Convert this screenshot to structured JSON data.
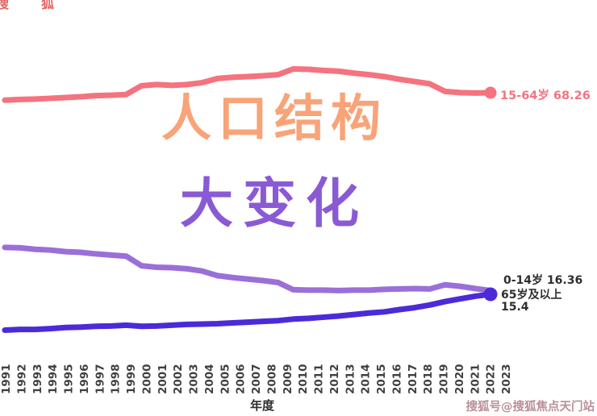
{
  "overlay_title": {
    "line1": "人口结构",
    "line2": "大变化"
  },
  "colors": {
    "title_line1": "#f8a478",
    "title_line2": "#8a5ad4",
    "working_line": "#f4737f",
    "children_line": "#9b6fd8",
    "elderly_line": "#4b2bd9",
    "axis_text": "#3f3f3f"
  },
  "axis": {
    "x_title": "年度"
  },
  "end_labels": {
    "working": "15-64岁 68.26",
    "children": "0-14岁 16.36",
    "elderly_name": "65岁及以上",
    "elderly_value": "15.4"
  },
  "watermark": {
    "text": "搜狐号@搜狐焦点天门站",
    "fragment": "搜狐"
  },
  "chart_data": {
    "type": "line",
    "title": "人口结构 大变化",
    "xlabel": "年度",
    "x": [
      1991,
      1992,
      1993,
      1994,
      1995,
      1996,
      1997,
      1998,
      1999,
      2000,
      2001,
      2002,
      2003,
      2004,
      2005,
      2006,
      2007,
      2008,
      2009,
      2010,
      2011,
      2012,
      2013,
      2014,
      2015,
      2016,
      2017,
      2018,
      2019,
      2020,
      2021,
      2022,
      2023
    ],
    "x_tick_rotation": 90,
    "grid": false,
    "ylim": [
      0,
      80
    ],
    "legend_position": "end-of-line-labels",
    "series": [
      {
        "name": "15-64岁",
        "color": "#f4737f",
        "end_value": 68.26,
        "values": [
          66.3,
          66.5,
          66.6,
          66.8,
          67.0,
          67.2,
          67.5,
          67.6,
          67.8,
          70.1,
          70.4,
          70.2,
          70.4,
          70.9,
          72.0,
          72.3,
          72.5,
          72.7,
          73.0,
          74.5,
          74.4,
          74.1,
          73.9,
          73.4,
          73.0,
          72.5,
          71.8,
          71.2,
          70.6,
          68.6,
          68.3,
          68.2,
          68.26
        ]
      },
      {
        "name": "0-14岁",
        "color": "#9b6fd8",
        "end_value": 16.36,
        "values": [
          27.7,
          27.6,
          27.2,
          27.0,
          26.6,
          26.4,
          26.0,
          25.7,
          25.4,
          22.9,
          22.5,
          22.4,
          22.1,
          21.5,
          20.3,
          19.8,
          19.4,
          19.0,
          18.5,
          16.6,
          16.5,
          16.5,
          16.4,
          16.5,
          16.5,
          16.7,
          16.8,
          16.9,
          16.8,
          17.9,
          17.5,
          16.9,
          16.36
        ]
      },
      {
        "name": "65岁及以上",
        "color": "#4b2bd9",
        "end_value": 15.4,
        "values": [
          6.0,
          6.2,
          6.2,
          6.4,
          6.7,
          6.8,
          7.0,
          7.1,
          7.3,
          7.0,
          7.1,
          7.3,
          7.5,
          7.6,
          7.7,
          7.9,
          8.1,
          8.3,
          8.5,
          8.9,
          9.1,
          9.4,
          9.7,
          10.1,
          10.5,
          10.8,
          11.4,
          11.9,
          12.6,
          13.5,
          14.2,
          14.9,
          15.4
        ]
      }
    ]
  }
}
